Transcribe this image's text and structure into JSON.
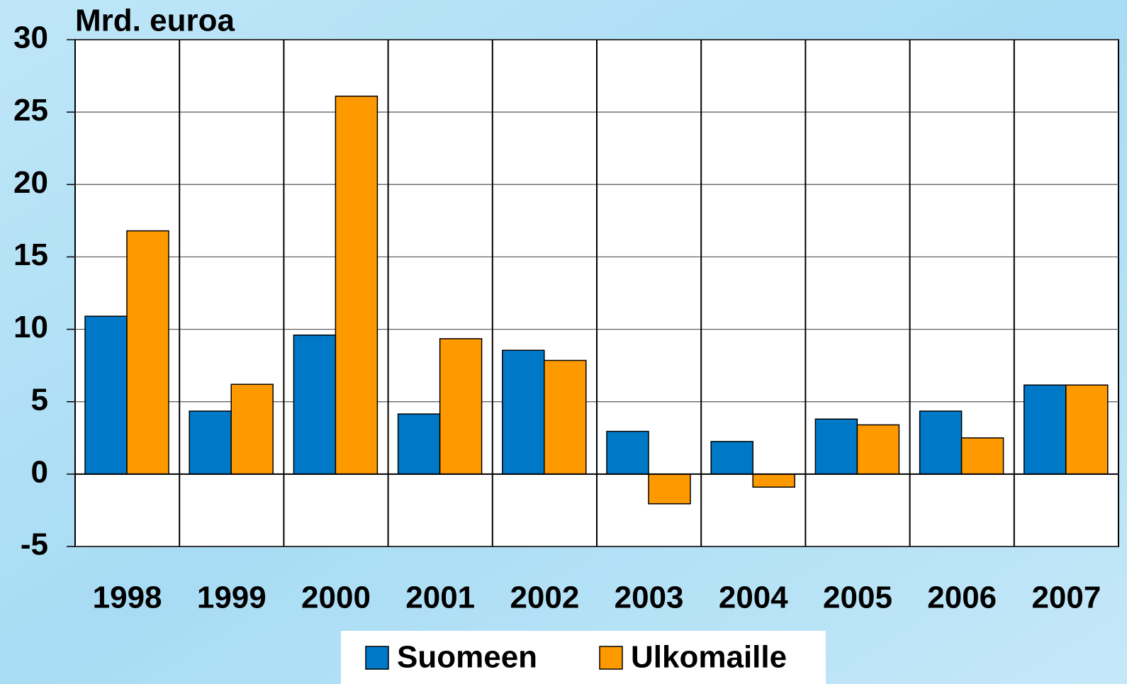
{
  "chart_data": {
    "type": "bar",
    "y_label": "Mrd. euroa",
    "categories": [
      "1998",
      "1999",
      "2000",
      "2001",
      "2002",
      "2003",
      "2004",
      "2005",
      "2006",
      "2007"
    ],
    "series": [
      {
        "name": "Suomeen",
        "color": "#0078c8",
        "values": [
          10.9,
          4.35,
          9.6,
          4.15,
          8.55,
          2.95,
          2.25,
          3.8,
          4.35,
          6.15
        ]
      },
      {
        "name": "Ulkomaille",
        "color": "#ff9900",
        "values": [
          16.8,
          6.2,
          26.1,
          9.35,
          7.85,
          -2.05,
          -0.9,
          3.4,
          2.5,
          6.15
        ]
      }
    ],
    "ylim": [
      -5,
      30
    ],
    "yticks": [
      -5,
      0,
      5,
      10,
      15,
      20,
      25,
      30
    ],
    "grid": true
  }
}
